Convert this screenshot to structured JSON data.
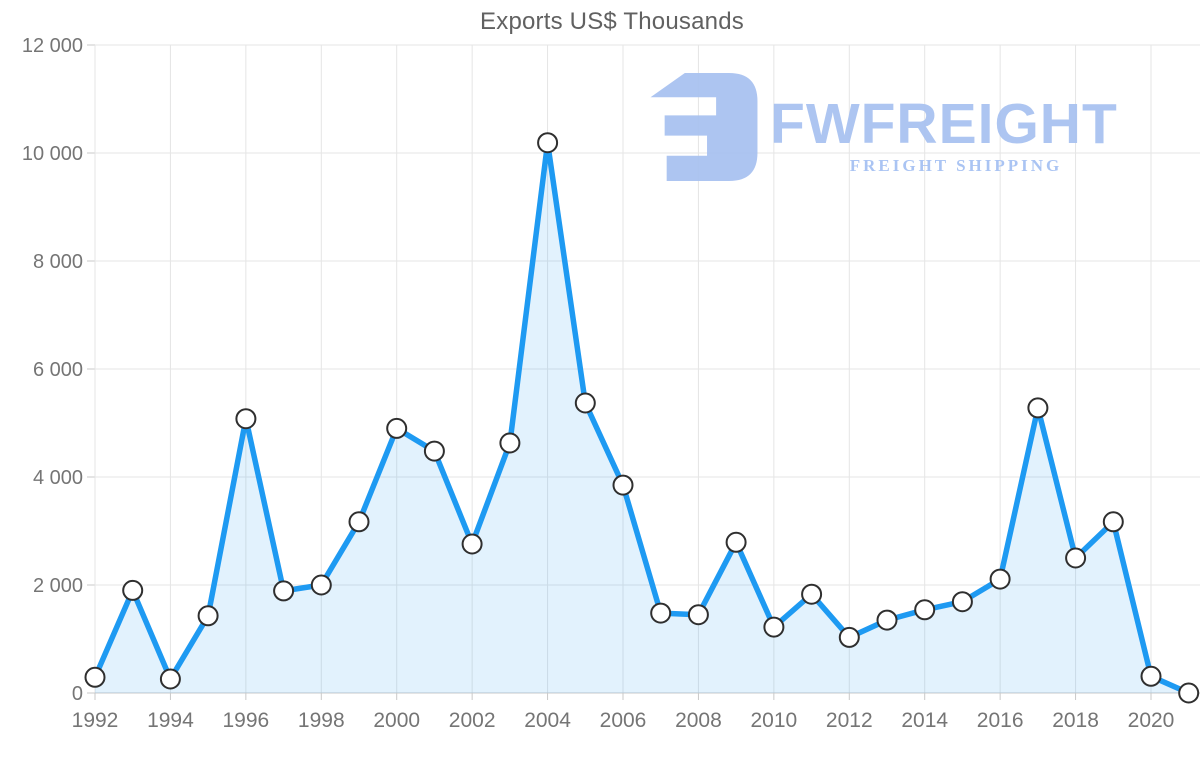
{
  "title": "Exports US$ Thousands",
  "watermark": {
    "brand": "FWFREIGHT",
    "tagline": "FREIGHT SHIPPING",
    "color": "#a7c1f0"
  },
  "chart_data": {
    "type": "area",
    "title": "Exports US$ Thousands",
    "x": [
      1992,
      1993,
      1994,
      1995,
      1996,
      1997,
      1998,
      1999,
      2000,
      2001,
      2002,
      2003,
      2004,
      2005,
      2006,
      2007,
      2008,
      2009,
      2010,
      2011,
      2012,
      2013,
      2014,
      2015,
      2016,
      2017,
      2018,
      2019,
      2020,
      2021
    ],
    "series": [
      {
        "name": "Exports US$ Thousands",
        "values": [
          290,
          1900,
          260,
          1430,
          5080,
          1890,
          2000,
          3170,
          4900,
          4480,
          2760,
          4630,
          10190,
          5370,
          3850,
          1480,
          1450,
          2790,
          1220,
          1830,
          1030,
          1350,
          1540,
          1690,
          2110,
          5280,
          2500,
          3170,
          310,
          0
        ]
      }
    ],
    "xlabel": "",
    "ylabel": "",
    "ylim": [
      0,
      12000
    ],
    "ytick_step": 2000,
    "y_tick_labels": [
      "0",
      "2 000",
      "4 000",
      "6 000",
      "8 000",
      "10 000",
      "12 000"
    ],
    "x_tick_labels": [
      "1992",
      "1994",
      "1996",
      "1998",
      "2000",
      "2002",
      "2004",
      "2006",
      "2008",
      "2010",
      "2012",
      "2014",
      "2016",
      "2018",
      "2020"
    ],
    "grid": true,
    "legend": "none",
    "line_color": "#1e9af2",
    "fill_color": "rgba(30, 154, 242, 0.13)",
    "marker_fill": "#ffffff",
    "marker_stroke": "#2f2f2f",
    "grid_color": "#e5e5e5",
    "axis_line_color": "#c9c9c9",
    "tick_label_color": "#757575",
    "title_color": "#616161"
  }
}
